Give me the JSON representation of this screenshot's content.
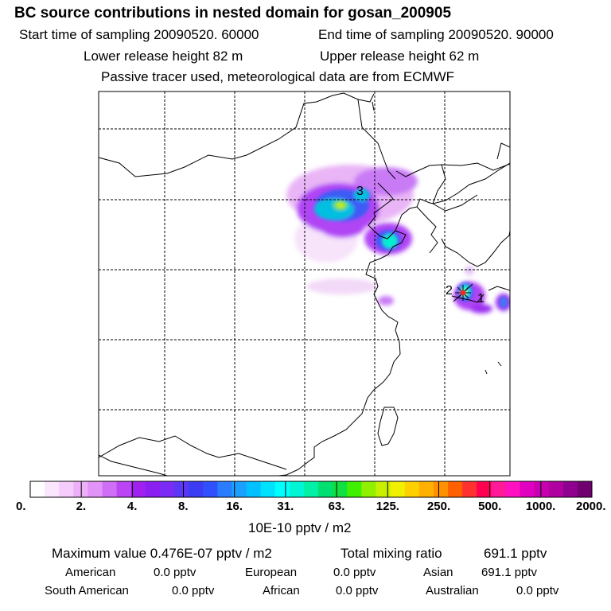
{
  "title": "BC  source contributions in nested domain for gosan_200905",
  "header": {
    "start_time": "Start time of sampling 20090520. 60000",
    "end_time": "End time of sampling 20090520. 90000",
    "lower_release": "Lower release height   82 m",
    "upper_release": "Upper release height   62 m",
    "tracer_note": "Passive tracer used, meteorological data are from ECMWF"
  },
  "map": {
    "markers": [
      "1",
      "2",
      "3"
    ]
  },
  "colorbar": {
    "labels": [
      "0.",
      "2.",
      "4.",
      "8.",
      "16.",
      "31.",
      "63.",
      "125.",
      "250.",
      "500.",
      "1000.",
      "2000."
    ],
    "unit": "10E-10 pptv / m2",
    "colors": [
      "#ffffff",
      "#fbe6fd",
      "#f5ccfb",
      "#edb0f9",
      "#e293f7",
      "#cf6ef6",
      "#bb44f5",
      "#a020f0",
      "#8b1ef0",
      "#7a2bf5",
      "#5a38f5",
      "#3c3cf5",
      "#3050ff",
      "#2a7cff",
      "#1aa0ff",
      "#00c0ff",
      "#00e0ff",
      "#00ffff",
      "#00f5d5",
      "#00f0a5",
      "#00e070",
      "#10e040",
      "#40f000",
      "#90f000",
      "#c8f000",
      "#f0f000",
      "#ffd000",
      "#ffb000",
      "#ff9000",
      "#ff6000",
      "#ff3030",
      "#ff0050",
      "#ff1a9a",
      "#ff10c0",
      "#e000c0",
      "#c800b0",
      "#b000a0",
      "#900090",
      "#700070"
    ]
  },
  "footer": {
    "max_value": "Maximum value  0.476E-07 pptv / m2",
    "total_label": "Total mixing ratio",
    "total_value": "691.1 pptv",
    "sources": [
      {
        "name": "American",
        "value": "0.0 pptv"
      },
      {
        "name": "European",
        "value": "0.0 pptv"
      },
      {
        "name": "Asian",
        "value": "691.1 pptv"
      },
      {
        "name": "South American",
        "value": "0.0 pptv"
      },
      {
        "name": "African",
        "value": "0.0 pptv"
      },
      {
        "name": "Australian",
        "value": "0.0 pptv"
      }
    ]
  }
}
